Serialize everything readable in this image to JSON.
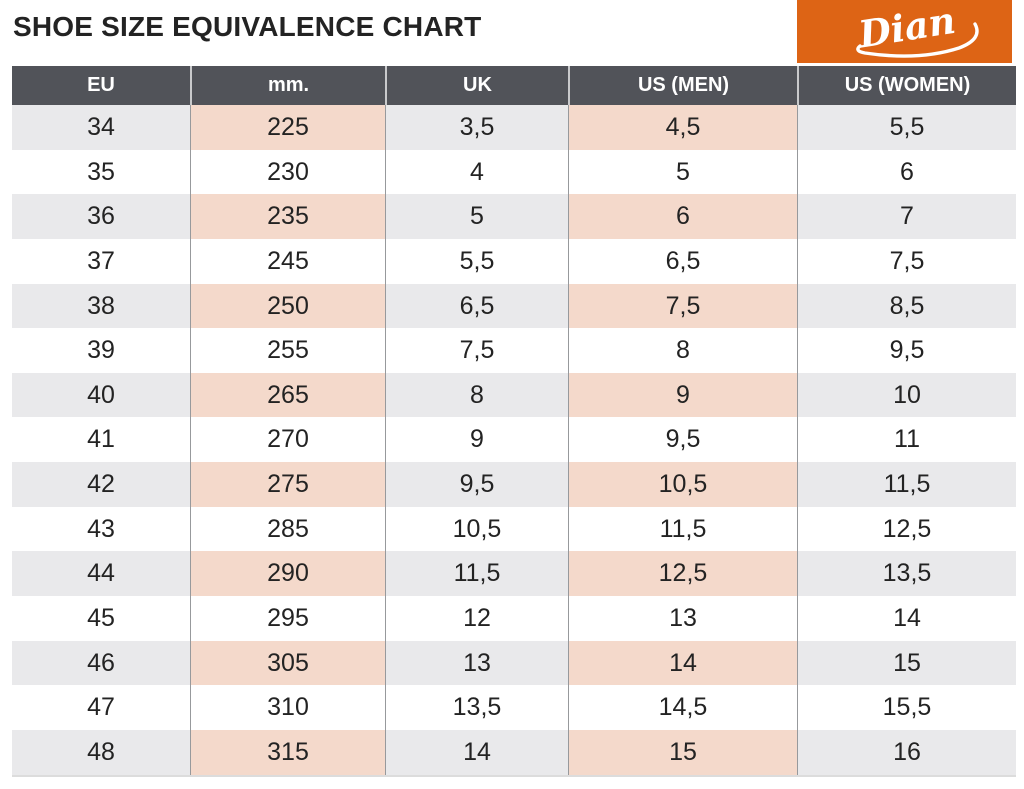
{
  "page": {
    "title": "SHOE SIZE EQUIVALENCE CHART"
  },
  "logo": {
    "text": "Dian"
  },
  "colors": {
    "header_bg": "#515359",
    "stripe_gray": "#e9e9eb",
    "stripe_pink": "#f4d9cb",
    "brand_orange": "#dd6415"
  },
  "chart_data": {
    "type": "table",
    "title": "SHOE SIZE EQUIVALENCE CHART",
    "columns": [
      "EU",
      "mm.",
      "UK",
      "US (MEN)",
      "US (WOMEN)"
    ],
    "column_keys": [
      "eu",
      "mm",
      "uk",
      "us-men",
      "us-women"
    ],
    "highlighted_columns": [
      "mm.",
      "US (MEN)"
    ],
    "rows": [
      [
        "34",
        "225",
        "3,5",
        "4,5",
        "5,5"
      ],
      [
        "35",
        "230",
        "4",
        "5",
        "6"
      ],
      [
        "36",
        "235",
        "5",
        "6",
        "7"
      ],
      [
        "37",
        "245",
        "5,5",
        "6,5",
        "7,5"
      ],
      [
        "38",
        "250",
        "6,5",
        "7,5",
        "8,5"
      ],
      [
        "39",
        "255",
        "7,5",
        "8",
        "9,5"
      ],
      [
        "40",
        "265",
        "8",
        "9",
        "10"
      ],
      [
        "41",
        "270",
        "9",
        "9,5",
        "11"
      ],
      [
        "42",
        "275",
        "9,5",
        "10,5",
        "11,5"
      ],
      [
        "43",
        "285",
        "10,5",
        "11,5",
        "12,5"
      ],
      [
        "44",
        "290",
        "11,5",
        "12,5",
        "13,5"
      ],
      [
        "45",
        "295",
        "12",
        "13",
        "14"
      ],
      [
        "46",
        "305",
        "13",
        "14",
        "15"
      ],
      [
        "47",
        "310",
        "13,5",
        "14,5",
        "15,5"
      ],
      [
        "48",
        "315",
        "14",
        "15",
        "16"
      ]
    ]
  }
}
